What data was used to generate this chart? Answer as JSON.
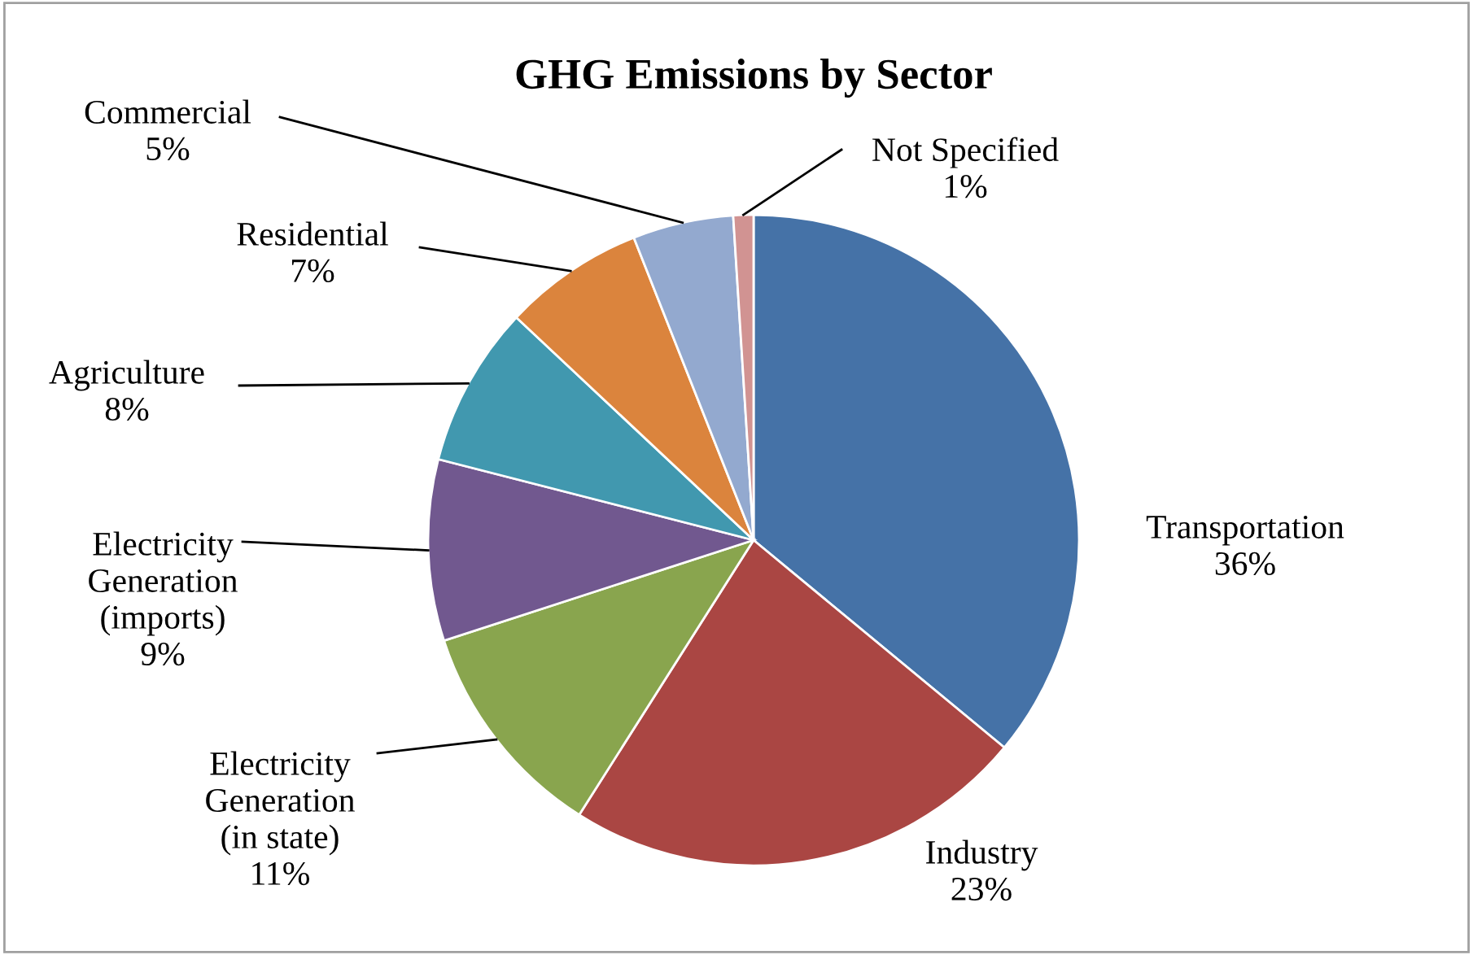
{
  "chart_data": {
    "type": "pie",
    "title": "GHG Emissions by Sector",
    "categories": [
      "Transportation",
      "Industry",
      "Electricity\nGeneration\n(in state)",
      "Electricity\nGeneration\n(imports)",
      "Agriculture",
      "Residential",
      "Commercial",
      "Not Specified"
    ],
    "values": [
      36,
      23,
      11,
      9,
      8,
      7,
      5,
      1
    ],
    "value_labels": [
      "36%",
      "23%",
      "11%",
      "9%",
      "8%",
      "7%",
      "5%",
      "1%"
    ],
    "colors": [
      "#4572a7",
      "#aa4643",
      "#89a54e",
      "#71588f",
      "#4198af",
      "#db843d",
      "#93a9cf",
      "#d19392"
    ],
    "legend": false
  }
}
